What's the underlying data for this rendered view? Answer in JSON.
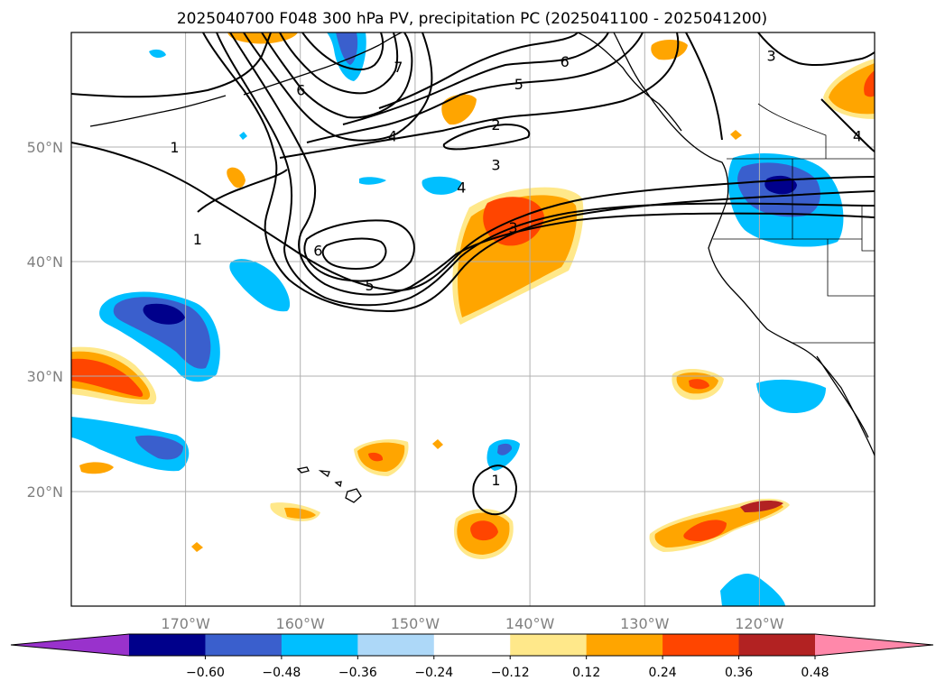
{
  "chart_data": {
    "type": "heatmap",
    "title": "2025040700 F048 300 hPa PV, precipitation PC (2025041100 - 2025041200)",
    "xlim": [
      -180,
      -110
    ],
    "ylim": [
      10,
      60
    ],
    "x_ticks": [
      {
        "value": -170,
        "label": "170°W"
      },
      {
        "value": -160,
        "label": "160°W"
      },
      {
        "value": -150,
        "label": "150°W"
      },
      {
        "value": -140,
        "label": "140°W"
      },
      {
        "value": -130,
        "label": "130°W"
      },
      {
        "value": -120,
        "label": "120°W"
      }
    ],
    "y_ticks": [
      {
        "value": 20,
        "label": "20°N"
      },
      {
        "value": 30,
        "label": "30°N"
      },
      {
        "value": 40,
        "label": "40°N"
      },
      {
        "value": 50,
        "label": "50°N"
      }
    ],
    "grid": true,
    "colorbar": {
      "levels": [
        -0.6,
        -0.48,
        -0.36,
        -0.24,
        -0.12,
        0.12,
        0.24,
        0.36,
        0.48,
        0.6
      ],
      "tick_labels": [
        "−0.60",
        "−0.48",
        "−0.36",
        "−0.24",
        "−0.12",
        "0.12",
        "0.24",
        "0.36",
        "0.48",
        "0.60"
      ],
      "colors": [
        "#9932cc",
        "#00008b",
        "#3a5fcd",
        "#00bfff",
        "#add8f8",
        "#ffffff",
        "#ffe88a",
        "#ffa500",
        "#ff4500",
        "#b22222",
        "#ff88aa"
      ],
      "extend": "both"
    },
    "pv_contour_labels": [
      {
        "text": "1",
        "lon": -171,
        "lat": 50
      },
      {
        "text": "1",
        "lon": -169,
        "lat": 42
      },
      {
        "text": "1",
        "lon": -143,
        "lat": 21
      },
      {
        "text": "2",
        "lon": -143,
        "lat": 52
      },
      {
        "text": "3",
        "lon": -143,
        "lat": 48.5
      },
      {
        "text": "3",
        "lon": -141.5,
        "lat": 43
      },
      {
        "text": "3",
        "lon": -119,
        "lat": 58
      },
      {
        "text": "4",
        "lon": -152,
        "lat": 51
      },
      {
        "text": "4",
        "lon": -146,
        "lat": 46.5
      },
      {
        "text": "4",
        "lon": -111.5,
        "lat": 51
      },
      {
        "text": "5",
        "lon": -141,
        "lat": 55.5
      },
      {
        "text": "5",
        "lon": -154,
        "lat": 38
      },
      {
        "text": "6",
        "lon": -160,
        "lat": 55
      },
      {
        "text": "6",
        "lon": -158.5,
        "lat": 41
      },
      {
        "text": "6",
        "lon": -137,
        "lat": 57.5
      },
      {
        "text": "7",
        "lon": -151.5,
        "lat": 57
      }
    ]
  }
}
